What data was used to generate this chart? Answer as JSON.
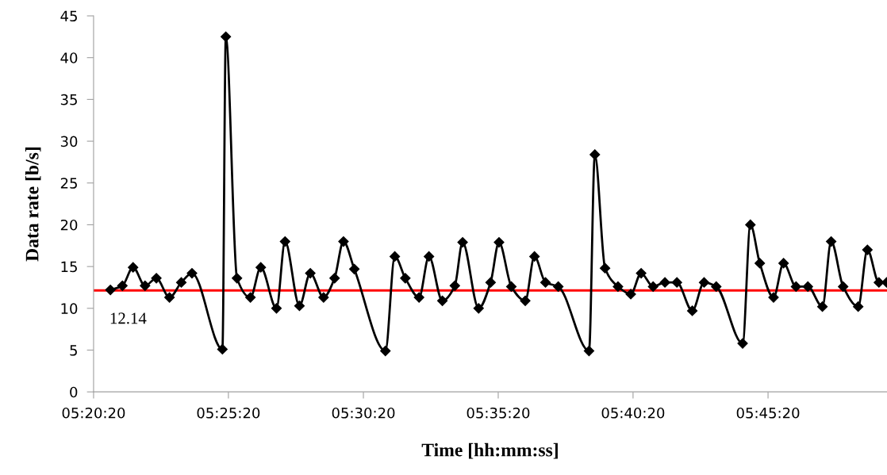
{
  "chart_data": {
    "type": "line",
    "xlabel": "Time [hh:mm:ss]",
    "ylabel": "Data rate [b/s]",
    "x": [
      5.3493,
      5.3567,
      5.3633,
      5.3707,
      5.3777,
      5.3858,
      5.3931,
      5.3997,
      5.4185,
      5.4206,
      5.4275,
      5.4358,
      5.4422,
      5.4519,
      5.4572,
      5.4661,
      5.4728,
      5.481,
      5.4878,
      5.4933,
      5.5,
      5.5192,
      5.525,
      5.5315,
      5.54,
      5.5461,
      5.5544,
      5.5621,
      5.5669,
      5.5768,
      5.5842,
      5.5894,
      5.597,
      5.6056,
      5.6113,
      5.6181,
      5.626,
      5.645,
      5.6486,
      5.6549,
      5.6629,
      5.6708,
      5.6772,
      5.6846,
      5.6919,
      5.6993,
      5.7088,
      5.7161,
      5.7236,
      5.7399,
      5.7447,
      5.7505,
      5.759,
      5.7652,
      5.7729,
      5.7802,
      5.7892,
      5.7946,
      5.802,
      5.8113,
      5.817,
      5.8241,
      5.8289
    ],
    "series": [
      {
        "color": "#000000",
        "values": [
          12.2,
          12.7,
          14.9,
          12.7,
          13.6,
          11.3,
          13.1,
          14.2,
          5.1,
          42.5,
          13.6,
          11.3,
          14.9,
          10.0,
          18.0,
          10.3,
          14.2,
          11.3,
          13.6,
          18.0,
          14.7,
          4.9,
          16.2,
          13.6,
          11.3,
          16.2,
          10.9,
          12.7,
          17.9,
          10.0,
          13.1,
          17.9,
          12.6,
          10.9,
          16.2,
          13.1,
          12.6,
          4.9,
          28.4,
          14.8,
          12.6,
          11.7,
          14.2,
          12.6,
          13.1,
          13.1,
          9.7,
          13.1,
          12.6,
          5.8,
          20.0,
          15.4,
          11.3,
          15.4,
          12.6,
          12.6,
          10.2,
          18.0,
          12.6,
          10.2,
          17.0,
          13.1,
          13.1
        ]
      }
    ],
    "xlim": [
      5.3389,
      5.8291
    ],
    "xticks": [
      {
        "value": 5.3389,
        "label": "05:20:20"
      },
      {
        "value": 5.4222,
        "label": "05:25:20"
      },
      {
        "value": 5.5056,
        "label": "05:30:20"
      },
      {
        "value": 5.5889,
        "label": "05:35:20"
      },
      {
        "value": 5.6722,
        "label": "05:40:20"
      },
      {
        "value": 5.7556,
        "label": "05:45:20"
      }
    ],
    "ylim": [
      0,
      45
    ],
    "yticks": [
      0,
      5,
      10,
      15,
      20,
      25,
      30,
      35,
      40,
      45
    ],
    "ref_lines": [
      {
        "axis": "y",
        "value": 12.14,
        "label": "12.14",
        "color": "#ff0000"
      }
    ],
    "marker": "diamond",
    "grid": false,
    "legend": false
  }
}
